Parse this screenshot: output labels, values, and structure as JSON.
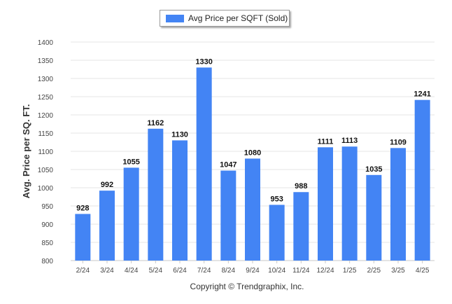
{
  "chart_data": {
    "type": "bar",
    "categories": [
      "2/24",
      "3/24",
      "4/24",
      "5/24",
      "6/24",
      "7/24",
      "8/24",
      "9/24",
      "10/24",
      "11/24",
      "12/24",
      "1/25",
      "2/25",
      "3/25",
      "4/25"
    ],
    "series": [
      {
        "name": "Avg Price per SQFT (Sold)",
        "values": [
          928,
          992,
          1055,
          1162,
          1130,
          1330,
          1047,
          1080,
          953,
          988,
          1111,
          1113,
          1035,
          1109,
          1241
        ]
      }
    ],
    "ylabel": "Avg. Price per SQ. FT.",
    "xlabel": "",
    "ylim": [
      800,
      1400
    ],
    "yticks": [
      800,
      850,
      900,
      950,
      1000,
      1050,
      1100,
      1150,
      1200,
      1250,
      1300,
      1350,
      1400
    ],
    "grid": true,
    "legend_position": "top-center",
    "bar_color": "#4384f4"
  },
  "footer": {
    "copyright": "Copyright © Trendgraphix, Inc."
  }
}
